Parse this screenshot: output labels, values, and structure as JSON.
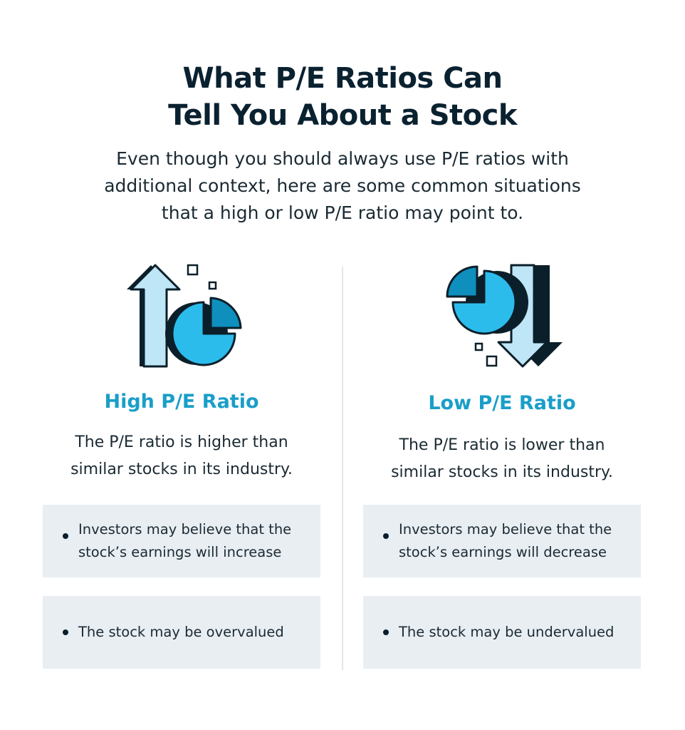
{
  "title": {
    "line1": "What P/E Ratios Can",
    "line2": "Tell You About a Stock"
  },
  "intro": {
    "line1": "Even though you should always use P/E ratios with",
    "line2": "additional context, here are some common situations",
    "line3": "that a high or low P/E ratio may point to."
  },
  "colors": {
    "heading": "#1a9ec8",
    "card_bg": "#e9eef3",
    "arrow_light": "#bfe6f7",
    "pie_blue": "#2cbcec",
    "pie_dark": "#0e8fbe",
    "outline": "#0b1f2a"
  },
  "high": {
    "icon": "up-arrow-pie-chart-icon",
    "heading": "High P/E Ratio",
    "desc_line1": "The P/E ratio is higher than",
    "desc_line2": "similar stocks in its industry.",
    "points": [
      {
        "line1": "Investors may believe that the",
        "line2": "stock’s earnings will increase"
      },
      {
        "line1": "The stock may be overvalued"
      }
    ]
  },
  "low": {
    "icon": "down-arrow-pie-chart-icon",
    "heading": "Low P/E Ratio",
    "desc_line1": "The P/E ratio is lower than",
    "desc_line2": "similar stocks in its industry.",
    "points": [
      {
        "line1": "Investors may believe that the",
        "line2": "stock’s earnings will decrease"
      },
      {
        "line1": "The stock may be undervalued"
      }
    ]
  }
}
